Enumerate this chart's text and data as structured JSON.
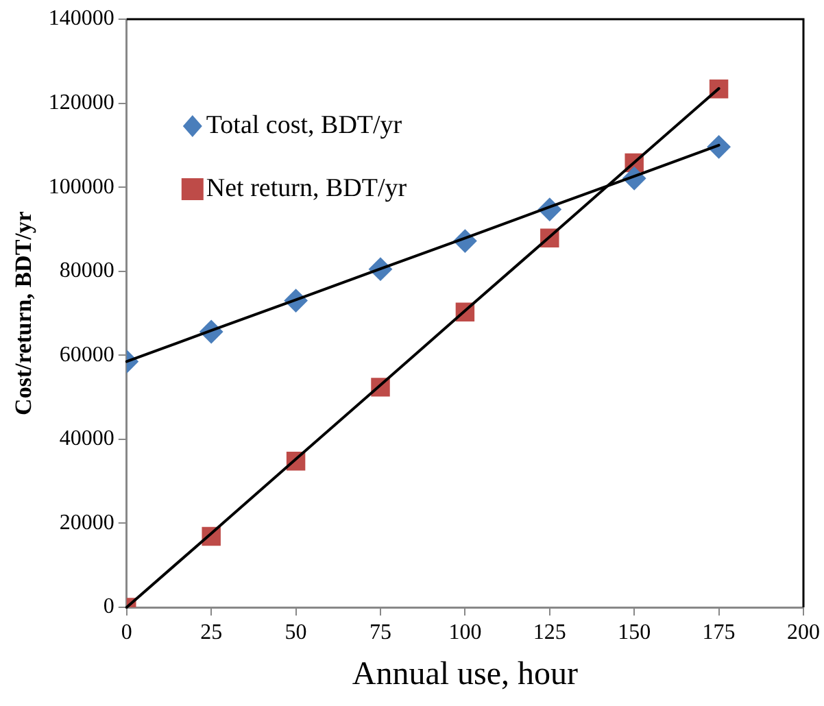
{
  "chart_data": {
    "type": "scatter",
    "xlabel": "Annual use, hour",
    "ylabel": "Cost/return, BDT/yr",
    "xlim": [
      0,
      200
    ],
    "xticks": [
      0,
      25,
      50,
      75,
      100,
      125,
      150,
      175,
      200
    ],
    "ylim": [
      0,
      140000
    ],
    "yticks": [
      0,
      20000,
      40000,
      60000,
      80000,
      100000,
      120000,
      140000
    ],
    "grid": false,
    "legend": "top left",
    "x": [
      0,
      25,
      50,
      75,
      100,
      125,
      150,
      175
    ],
    "series": [
      {
        "name": "Total cost, BDT/yr",
        "color": "#4a7ebb",
        "marker": "diamond",
        "values": [
          58500,
          65600,
          73000,
          80500,
          87200,
          94700,
          102100,
          109600
        ]
      },
      {
        "name": "Net return, BDT/yr",
        "color": "#be4b48",
        "marker": "square",
        "values": [
          0,
          16900,
          34800,
          52400,
          70300,
          87900,
          105800,
          123400
        ]
      },
      {
        "type": "line",
        "color": "#000000",
        "values": [
          58500,
          65900,
          73200,
          80600,
          87900,
          95300,
          102600,
          110000
        ]
      },
      {
        "type": "line",
        "color": "#000000",
        "values": [
          0,
          17600,
          35300,
          52900,
          70600,
          88200,
          105900,
          123500
        ]
      }
    ]
  }
}
